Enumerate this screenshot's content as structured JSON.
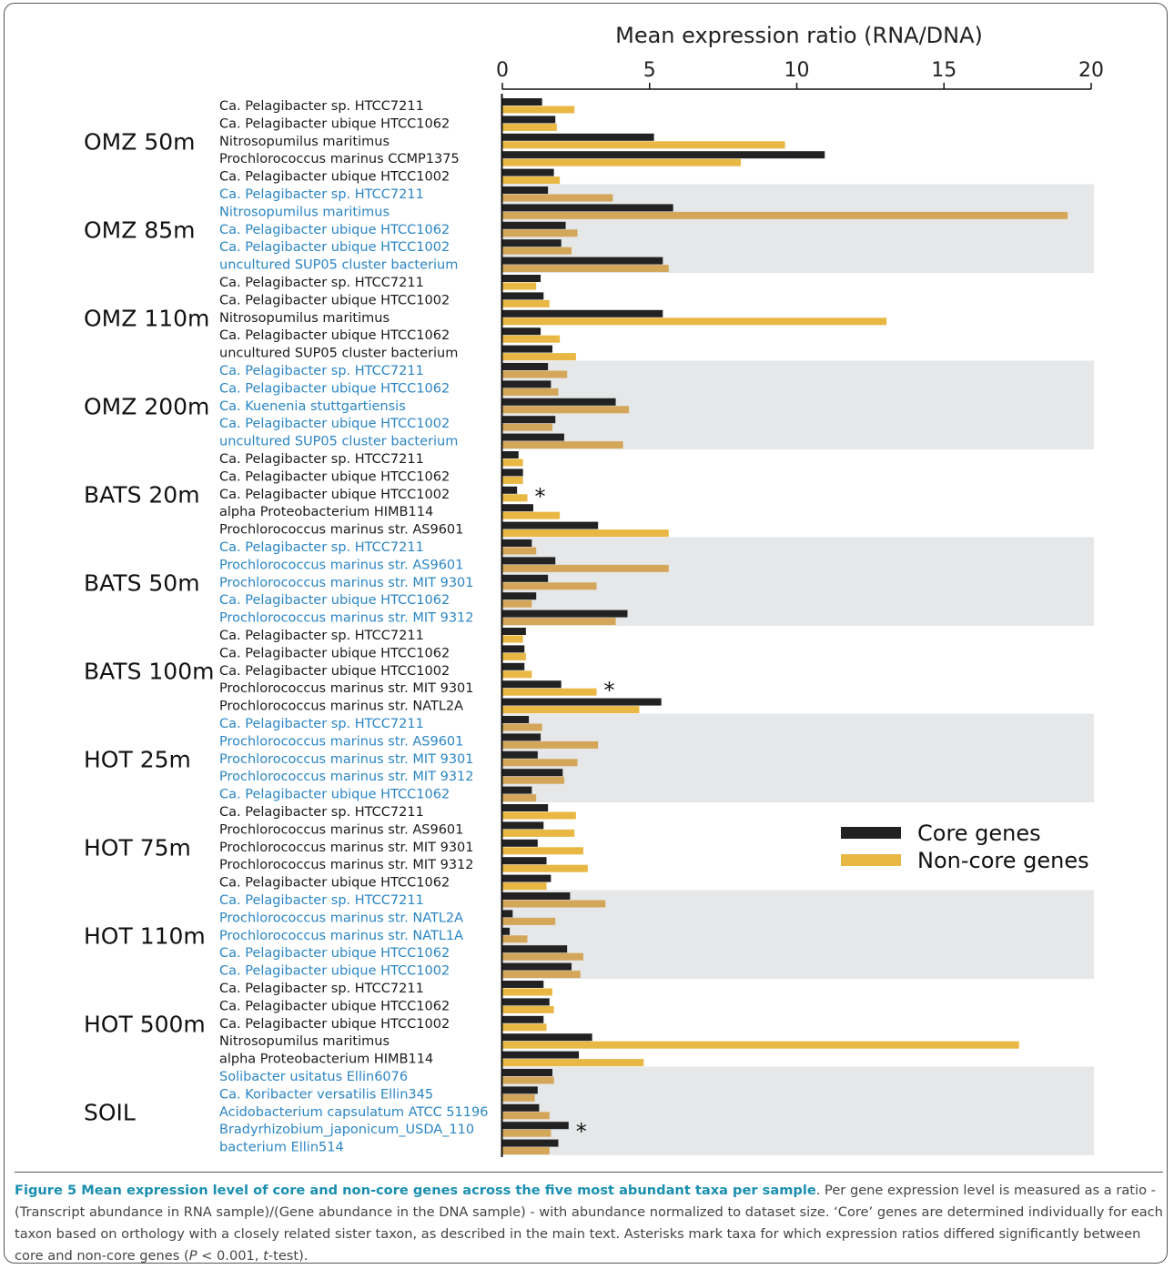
{
  "colors": {
    "core": "#222222",
    "noncore_white": "#e9b744",
    "noncore_gray": "#d4a65a",
    "band": "#e6e7e8",
    "label_black": "#1a1a1a",
    "label_blue": "#2a85c4",
    "caption_title": "#1a8fb0"
  },
  "chart_data": {
    "type": "bar",
    "orientation": "horizontal",
    "title": "Mean expression ratio (RNA/DNA)",
    "xlim": [
      0,
      20
    ],
    "xticks": [
      "0",
      "5",
      "10",
      "15",
      "20"
    ],
    "legend": {
      "placement": "right",
      "entries": [
        {
          "name": "Core genes",
          "key": "core"
        },
        {
          "name": "Non-core genes",
          "key": "noncore"
        }
      ]
    },
    "groups": [
      {
        "sample": "OMZ 50m",
        "shaded": false,
        "taxa": [
          {
            "name": "Ca. Pelagibacter sp. HTCC7211",
            "core": 1.35,
            "noncore": 2.45,
            "sig": false
          },
          {
            "name": "Ca. Pelagibacter ubique HTCC1062",
            "core": 1.8,
            "noncore": 1.85,
            "sig": false
          },
          {
            "name": "Nitrosopumilus maritimus",
            "core": 5.15,
            "noncore": 9.6,
            "sig": false
          },
          {
            "name": "Prochlorococcus marinus CCMP1375",
            "core": 10.95,
            "noncore": 8.1,
            "sig": false
          },
          {
            "name": "Ca. Pelagibacter ubique HTCC1002",
            "core": 1.75,
            "noncore": 1.95,
            "sig": false
          }
        ]
      },
      {
        "sample": "OMZ 85m",
        "shaded": true,
        "taxa": [
          {
            "name": "Ca. Pelagibacter sp. HTCC7211",
            "core": 1.55,
            "noncore": 3.75,
            "sig": false
          },
          {
            "name": "Nitrosopumilus maritimus",
            "core": 5.8,
            "noncore": 19.2,
            "sig": false
          },
          {
            "name": "Ca. Pelagibacter ubique HTCC1062",
            "core": 2.15,
            "noncore": 2.55,
            "sig": false
          },
          {
            "name": "Ca. Pelagibacter ubique HTCC1002",
            "core": 2.0,
            "noncore": 2.35,
            "sig": false
          },
          {
            "name": "uncultured SUP05 cluster bacterium",
            "core": 5.45,
            "noncore": 5.65,
            "sig": false
          }
        ]
      },
      {
        "sample": "OMZ 110m",
        "shaded": false,
        "taxa": [
          {
            "name": "Ca. Pelagibacter sp. HTCC7211",
            "core": 1.3,
            "noncore": 1.15,
            "sig": false
          },
          {
            "name": "Ca. Pelagibacter ubique HTCC1002",
            "core": 1.4,
            "noncore": 1.6,
            "sig": false
          },
          {
            "name": "Nitrosopumilus maritimus",
            "core": 5.45,
            "noncore": 13.05,
            "sig": false
          },
          {
            "name": "Ca. Pelagibacter ubique HTCC1062",
            "core": 1.3,
            "noncore": 1.95,
            "sig": false
          },
          {
            "name": "uncultured SUP05 cluster bacterium",
            "core": 1.7,
            "noncore": 2.5,
            "sig": false
          }
        ]
      },
      {
        "sample": "OMZ 200m",
        "shaded": true,
        "taxa": [
          {
            "name": "Ca. Pelagibacter sp. HTCC7211",
            "core": 1.55,
            "noncore": 2.2,
            "sig": false
          },
          {
            "name": "Ca. Pelagibacter ubique HTCC1062",
            "core": 1.65,
            "noncore": 1.9,
            "sig": false
          },
          {
            "name": "Ca. Kuenenia stuttgartiensis",
            "core": 3.85,
            "noncore": 4.3,
            "sig": false
          },
          {
            "name": "Ca. Pelagibacter ubique HTCC1002",
            "core": 1.8,
            "noncore": 1.7,
            "sig": false
          },
          {
            "name": "uncultured SUP05 cluster bacterium",
            "core": 2.1,
            "noncore": 4.1,
            "sig": false
          }
        ]
      },
      {
        "sample": "BATS 20m",
        "shaded": false,
        "taxa": [
          {
            "name": "Ca. Pelagibacter sp. HTCC7211",
            "core": 0.55,
            "noncore": 0.7,
            "sig": false
          },
          {
            "name": "Ca. Pelagibacter ubique HTCC1062",
            "core": 0.7,
            "noncore": 0.7,
            "sig": false
          },
          {
            "name": "Ca. Pelagibacter ubique HTCC1002",
            "core": 0.5,
            "noncore": 0.85,
            "sig": true
          },
          {
            "name": "alpha Proteobacterium HIMB114",
            "core": 1.05,
            "noncore": 1.95,
            "sig": false
          },
          {
            "name": "Prochlorococcus marinus str. AS9601",
            "core": 3.25,
            "noncore": 5.65,
            "sig": false
          }
        ]
      },
      {
        "sample": "BATS 50m",
        "shaded": true,
        "taxa": [
          {
            "name": "Ca. Pelagibacter sp. HTCC7211",
            "core": 1.0,
            "noncore": 1.15,
            "sig": false
          },
          {
            "name": "Prochlorococcus marinus str. AS9601",
            "core": 1.8,
            "noncore": 5.65,
            "sig": false
          },
          {
            "name": "Prochlorococcus marinus str. MIT 9301",
            "core": 1.55,
            "noncore": 3.2,
            "sig": false
          },
          {
            "name": "Ca. Pelagibacter ubique HTCC1062",
            "core": 1.15,
            "noncore": 1.0,
            "sig": false
          },
          {
            "name": "Prochlorococcus marinus str. MIT 9312",
            "core": 4.25,
            "noncore": 3.85,
            "sig": false
          }
        ]
      },
      {
        "sample": "BATS 100m",
        "shaded": false,
        "taxa": [
          {
            "name": "Ca. Pelagibacter sp. HTCC7211",
            "core": 0.8,
            "noncore": 0.7,
            "sig": false
          },
          {
            "name": "Ca. Pelagibacter ubique HTCC1062",
            "core": 0.75,
            "noncore": 0.8,
            "sig": false
          },
          {
            "name": "Ca. Pelagibacter ubique HTCC1002",
            "core": 0.75,
            "noncore": 1.0,
            "sig": false
          },
          {
            "name": "Prochlorococcus marinus str. MIT 9301",
            "core": 2.0,
            "noncore": 3.2,
            "sig": true
          },
          {
            "name": "Prochlorococcus marinus str. NATL2A",
            "core": 5.4,
            "noncore": 4.65,
            "sig": false
          }
        ]
      },
      {
        "sample": "HOT 25m",
        "shaded": true,
        "taxa": [
          {
            "name": "Ca. Pelagibacter sp. HTCC7211",
            "core": 0.9,
            "noncore": 1.35,
            "sig": false
          },
          {
            "name": "Prochlorococcus marinus str. AS9601",
            "core": 1.3,
            "noncore": 3.25,
            "sig": false
          },
          {
            "name": "Prochlorococcus marinus str. MIT 9301",
            "core": 1.2,
            "noncore": 2.55,
            "sig": false
          },
          {
            "name": "Prochlorococcus marinus str. MIT 9312",
            "core": 2.05,
            "noncore": 2.1,
            "sig": false
          },
          {
            "name": "Ca. Pelagibacter ubique HTCC1062",
            "core": 1.0,
            "noncore": 1.15,
            "sig": false
          }
        ]
      },
      {
        "sample": "HOT 75m",
        "shaded": false,
        "taxa": [
          {
            "name": "Ca. Pelagibacter sp. HTCC7211",
            "core": 1.55,
            "noncore": 2.5,
            "sig": false
          },
          {
            "name": "Prochlorococcus marinus str. AS9601",
            "core": 1.4,
            "noncore": 2.45,
            "sig": false
          },
          {
            "name": "Prochlorococcus marinus str. MIT 9301",
            "core": 1.2,
            "noncore": 2.75,
            "sig": false
          },
          {
            "name": "Prochlorococcus marinus str. MIT 9312",
            "core": 1.5,
            "noncore": 2.9,
            "sig": false
          },
          {
            "name": "Ca. Pelagibacter ubique HTCC1062",
            "core": 1.65,
            "noncore": 1.5,
            "sig": false
          }
        ]
      },
      {
        "sample": "HOT 110m",
        "shaded": true,
        "taxa": [
          {
            "name": "Ca. Pelagibacter sp. HTCC7211",
            "core": 2.3,
            "noncore": 3.5,
            "sig": false
          },
          {
            "name": "Prochlorococcus marinus str. NATL2A",
            "core": 0.35,
            "noncore": 1.8,
            "sig": false
          },
          {
            "name": "Prochlorococcus marinus str. NATL1A",
            "core": 0.25,
            "noncore": 0.85,
            "sig": false
          },
          {
            "name": "Ca. Pelagibacter ubique HTCC1062",
            "core": 2.2,
            "noncore": 2.75,
            "sig": false
          },
          {
            "name": "Ca. Pelagibacter ubique HTCC1002",
            "core": 2.35,
            "noncore": 2.65,
            "sig": false
          }
        ]
      },
      {
        "sample": "HOT 500m",
        "shaded": false,
        "taxa": [
          {
            "name": "Ca. Pelagibacter sp. HTCC7211",
            "core": 1.4,
            "noncore": 1.7,
            "sig": false
          },
          {
            "name": "Ca. Pelagibacter ubique HTCC1062",
            "core": 1.6,
            "noncore": 1.75,
            "sig": false
          },
          {
            "name": "Ca. Pelagibacter ubique HTCC1002",
            "core": 1.4,
            "noncore": 1.5,
            "sig": false
          },
          {
            "name": "Nitrosopumilus maritimus",
            "core": 3.05,
            "noncore": 17.55,
            "sig": false
          },
          {
            "name": "alpha Proteobacterium HIMB114",
            "core": 2.6,
            "noncore": 4.8,
            "sig": false
          }
        ]
      },
      {
        "sample": "SOIL",
        "shaded": true,
        "taxa": [
          {
            "name": "Solibacter usitatus Ellin6076",
            "core": 1.7,
            "noncore": 1.75,
            "sig": false
          },
          {
            "name": "Ca. Koribacter versatilis Ellin345",
            "core": 1.2,
            "noncore": 1.1,
            "sig": false
          },
          {
            "name": "Acidobacterium capsulatum ATCC 51196",
            "core": 1.25,
            "noncore": 1.6,
            "sig": false
          },
          {
            "name": "Bradyrhizobium_japonicum_USDA_110",
            "core": 2.25,
            "noncore": 1.65,
            "sig": true
          },
          {
            "name": "bacterium Ellin514",
            "core": 1.9,
            "noncore": 1.6,
            "sig": false
          }
        ]
      }
    ]
  },
  "caption": {
    "title": "Figure 5 Mean expression level of core and non-core genes across the five most abundant taxa per sample",
    "body_pre": ". Per gene expression level is measured as a ratio - (Transcript abundance in RNA sample)/(Gene abundance in the DNA sample) - with abundance normalized to dataset size. ‘Core’ genes are determined individually for each taxon based on orthology with a closely related sister taxon, as described in the main text. Asterisks mark taxa for which expression ratios differed significantly between core and non-core genes (",
    "p_letter": "P",
    "p_value": " < 0.001, ",
    "t_letter": "t",
    "body_post": "-test)."
  }
}
